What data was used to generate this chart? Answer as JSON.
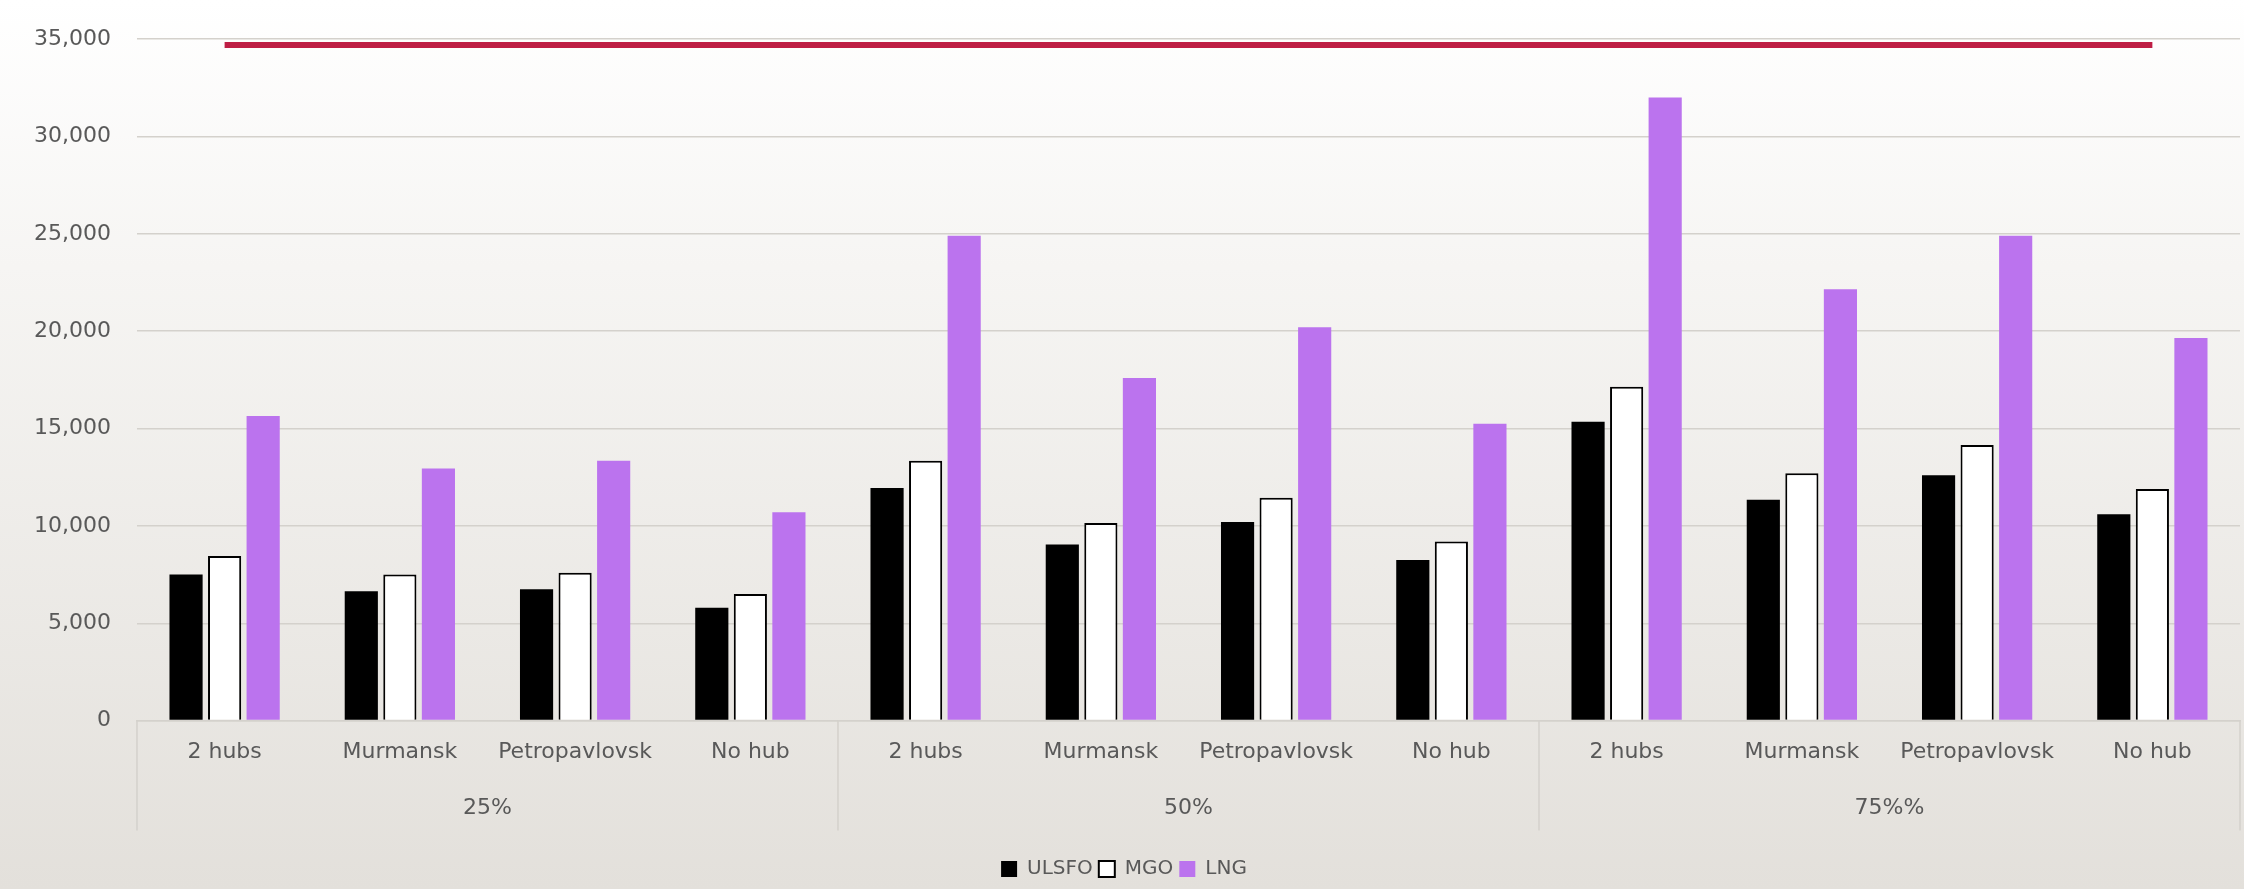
{
  "chart_data": {
    "type": "bar",
    "categories": [
      "2 hubs",
      "Murmansk",
      "Petropavlovsk",
      "No hub",
      "2 hubs",
      "Murmansk",
      "Petropavlovsk",
      "No hub",
      "2 hubs",
      "Murmansk",
      "Petropavlovsk",
      "No hub"
    ],
    "annotations": [
      "25%",
      "50%",
      "75%%"
    ],
    "series": [
      {
        "name": "ULSFO",
        "color": "#000000",
        "values": [
          7500,
          6650,
          6750,
          5800,
          11950,
          9050,
          10200,
          8250,
          15350,
          11350,
          12600,
          10600
        ]
      },
      {
        "name": "MGO",
        "color": "#ffffff",
        "values": [
          8450,
          7500,
          7600,
          6500,
          13350,
          10150,
          11450,
          9200,
          17150,
          12700,
          14150,
          11900
        ]
      },
      {
        "name": "LNG",
        "color": "#bb73ee",
        "values": [
          15650,
          12950,
          13350,
          10700,
          24900,
          17600,
          20200,
          15250,
          32000,
          22150,
          24900,
          19650
        ]
      }
    ],
    "ref_lines": [
      {
        "axis": "y",
        "value": 34700,
        "color": "#be1e45"
      }
    ],
    "ylim": [
      0,
      35000
    ],
    "yticks": [
      0,
      {
        "value": 5000,
        "label": "5,000"
      },
      {
        "value": 10000,
        "label": "10,000"
      },
      {
        "value": 15000,
        "label": "15,000"
      },
      {
        "value": 20000,
        "label": "20,000"
      },
      {
        "value": 25000,
        "label": "25,000"
      },
      {
        "value": 30000,
        "label": "30,000"
      },
      {
        "value": 35000,
        "label": "35,000"
      }
    ],
    "grid": "y",
    "legend": "bottom"
  }
}
